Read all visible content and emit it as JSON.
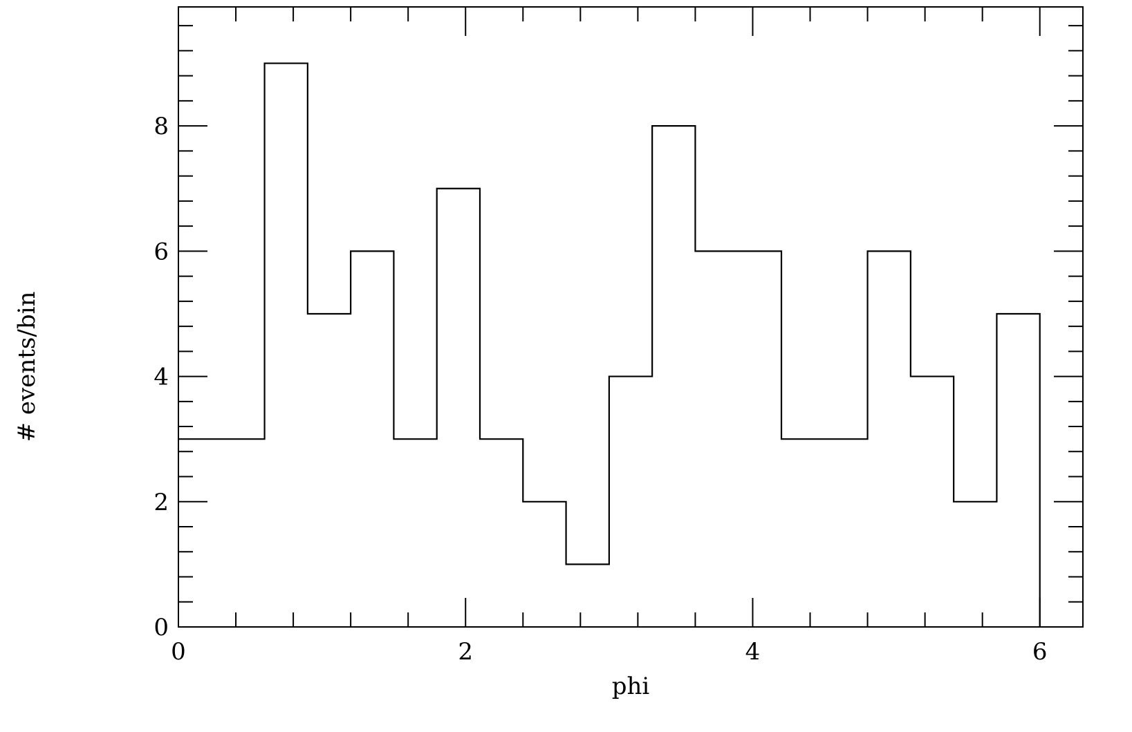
{
  "chart_data": {
    "type": "histogram",
    "title": "",
    "xlabel": "phi",
    "ylabel": "# events/bin",
    "xlim": [
      0,
      6.3
    ],
    "ylim": [
      0,
      9.9
    ],
    "grid": false,
    "bin_width": 0.3,
    "bin_edges": [
      0,
      0.3,
      0.6,
      0.9,
      1.2,
      1.5,
      1.8,
      2.1,
      2.4,
      2.7,
      3.0,
      3.3,
      3.6,
      3.9,
      4.2,
      4.5,
      4.8,
      5.1,
      5.4,
      5.7,
      6.0
    ],
    "counts": [
      3,
      3,
      9,
      5,
      6,
      3,
      7,
      3,
      2,
      1,
      4,
      8,
      6,
      6,
      3,
      3,
      6,
      4,
      2,
      5
    ],
    "x_major_ticks": [
      0,
      2,
      4,
      6
    ],
    "x_minor_step": 0.4,
    "y_major_ticks": [
      0,
      2,
      4,
      6,
      8
    ],
    "y_minor_step": 0.4
  }
}
